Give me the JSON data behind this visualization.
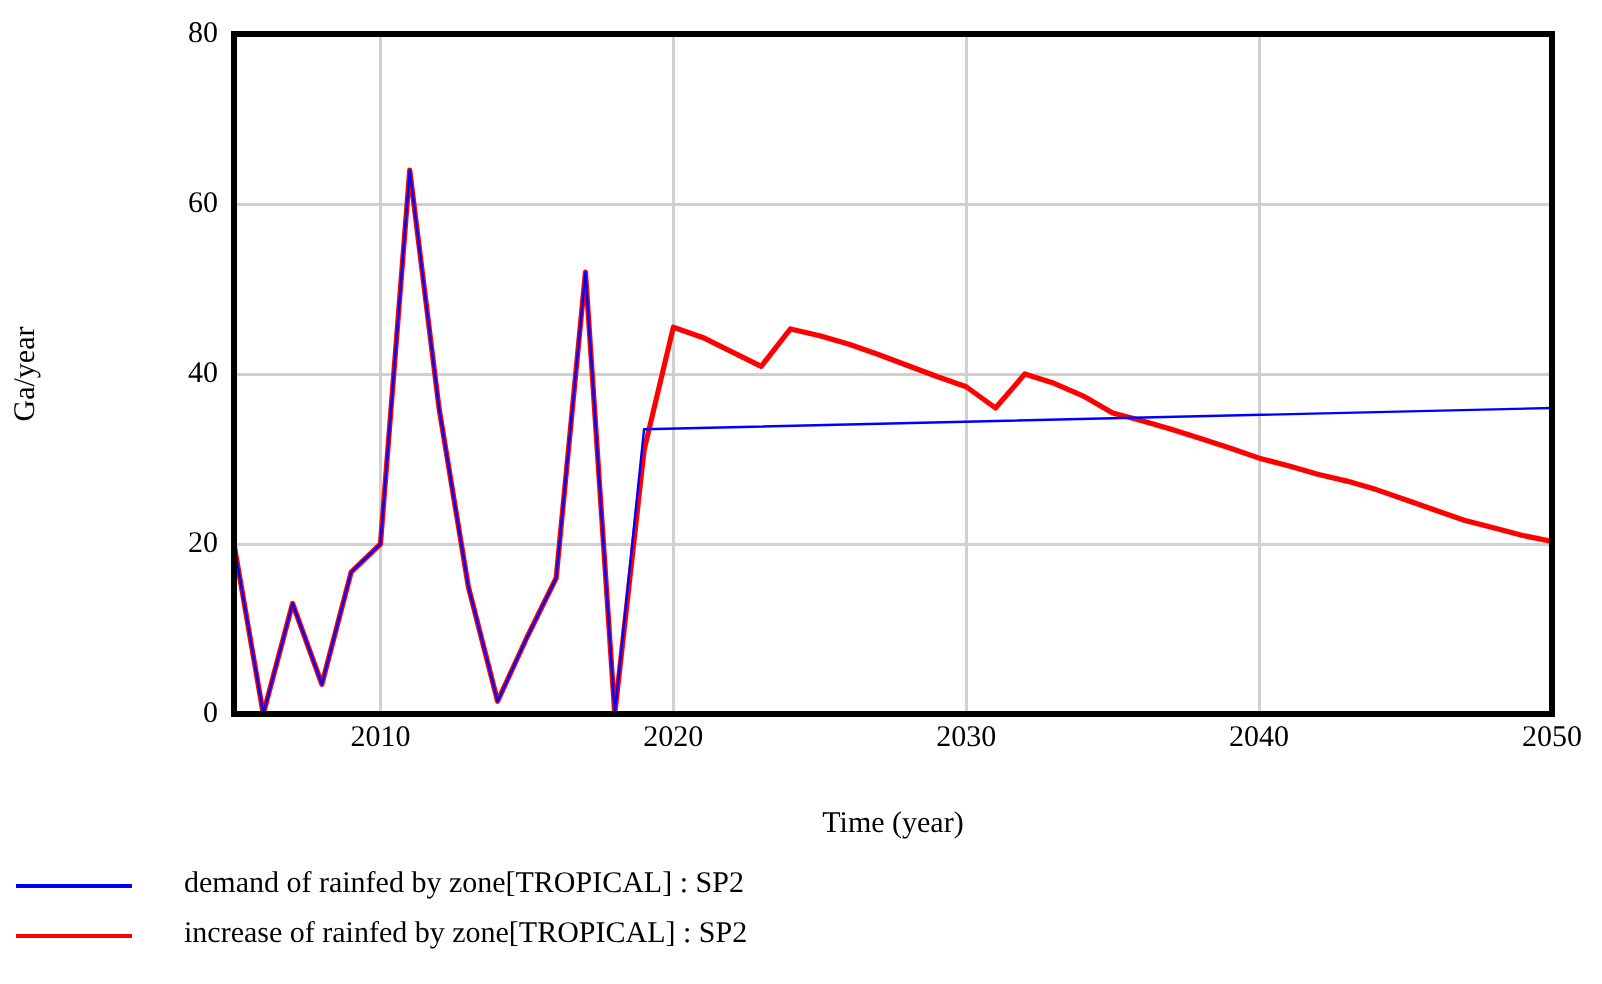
{
  "chart_data": {
    "type": "line",
    "xlabel": "Time (year)",
    "ylabel": "Ga/year",
    "xlim": [
      2005,
      2050
    ],
    "xticks": [
      2010,
      2020,
      2030,
      2040,
      2050
    ],
    "ylim": [
      0,
      80
    ],
    "yticks": [
      0,
      20,
      40,
      60,
      80
    ],
    "grid": true,
    "legend": "bottom",
    "marker": "none",
    "line_style": "solid",
    "series": [
      {
        "name": "demand of rainfed by zone[TROPICAL] : SP2",
        "color": "#0000ff",
        "x": [
          2005,
          2006,
          2007,
          2008,
          2009,
          2010,
          2011,
          2012,
          2013,
          2014,
          2015,
          2016,
          2017,
          2018,
          2019,
          2050
        ],
        "values": [
          20,
          0,
          13,
          3.5,
          16.7,
          20,
          64,
          36,
          15,
          1.5,
          9,
          16,
          52,
          0,
          33.5,
          36
        ]
      },
      {
        "name": "increase of rainfed by zone[TROPICAL] : SP2",
        "color": "#ff0000",
        "x": [
          2005,
          2006,
          2007,
          2008,
          2009,
          2010,
          2011,
          2012,
          2013,
          2014,
          2015,
          2016,
          2017,
          2018,
          2019,
          2020,
          2021,
          2022,
          2023,
          2024,
          2025,
          2026,
          2027,
          2028,
          2029,
          2030,
          2031,
          2032,
          2033,
          2034,
          2035,
          2036,
          2037,
          2038,
          2039,
          2040,
          2041,
          2042,
          2043,
          2044,
          2045,
          2046,
          2047,
          2048,
          2049,
          2050
        ],
        "values": [
          20,
          0,
          13,
          3.5,
          16.7,
          20,
          64,
          36,
          15,
          1.5,
          9,
          16,
          52,
          0,
          31,
          45.5,
          44.3,
          42.6,
          40.9,
          45.3,
          44.5,
          43.5,
          42.3,
          41,
          39.7,
          38.5,
          36,
          40,
          38.9,
          37.4,
          35.4,
          34.5,
          33.5,
          32.4,
          31.3,
          30.1,
          29.2,
          28.2,
          27.4,
          26.4,
          25.2,
          24,
          22.8,
          21.9,
          21,
          20.3
        ]
      }
    ]
  }
}
